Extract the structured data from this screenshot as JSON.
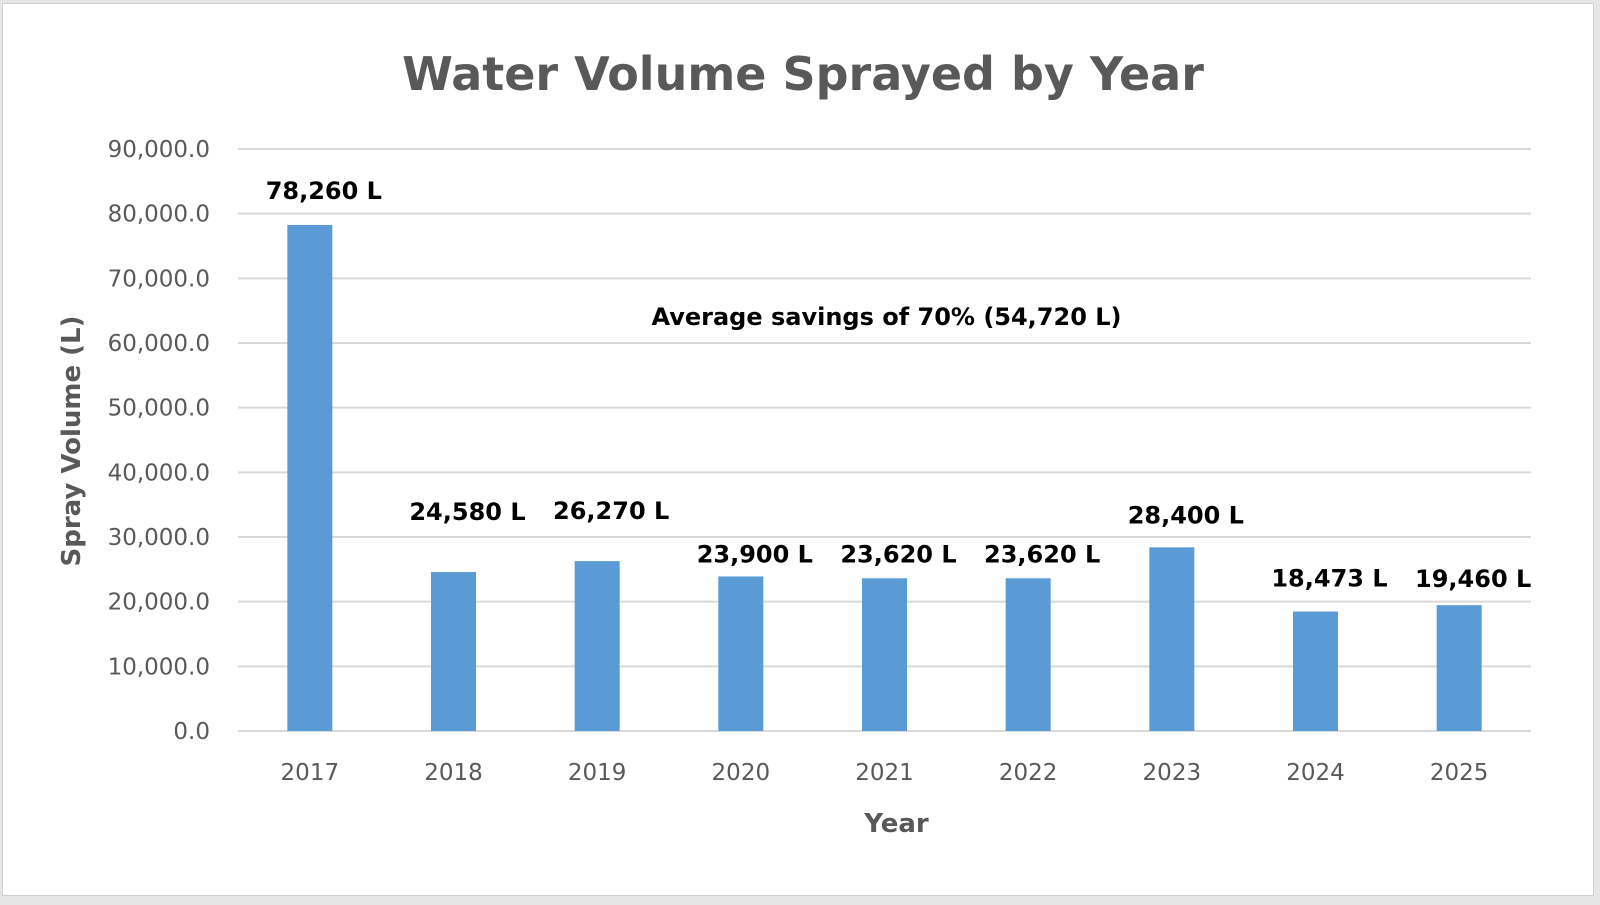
{
  "chart_data": {
    "type": "bar",
    "title": "Water Volume Sprayed by Year",
    "xlabel": "Year",
    "ylabel": "Spray Volume (L)",
    "categories": [
      "2017",
      "2018",
      "2019",
      "2020",
      "2021",
      "2022",
      "2023",
      "2024",
      "2025"
    ],
    "values": [
      78260,
      24580,
      26270,
      23900,
      23620,
      23620,
      28400,
      18473,
      19460
    ],
    "data_labels": [
      "78,260 L",
      "24,580 L",
      "26,270 L",
      "23,900 L",
      "23,620 L",
      "23,620 L",
      "28,400 L",
      "18,473 L",
      "19,460 L"
    ],
    "ylim": [
      0,
      90000
    ],
    "yticks": [
      0,
      10000,
      20000,
      30000,
      40000,
      50000,
      60000,
      70000,
      80000,
      90000
    ],
    "ytick_labels": [
      "0.0",
      "10,000.0",
      "20,000.0",
      "30,000.0",
      "40,000.0",
      "50,000.0",
      "60,000.0",
      "70,000.0",
      "80,000.0",
      "90,000.0"
    ],
    "grid": true,
    "legend": "none",
    "annotations": [
      {
        "text": "Average savings of 70% (54,720 L)",
        "x_between": [
          "2020",
          "2022"
        ],
        "y": 64000
      }
    ],
    "colors": {
      "bar": "#5b9bd5",
      "grid": "#d9d9d9",
      "axis_text": "#595959",
      "data_label": "#000000"
    }
  }
}
